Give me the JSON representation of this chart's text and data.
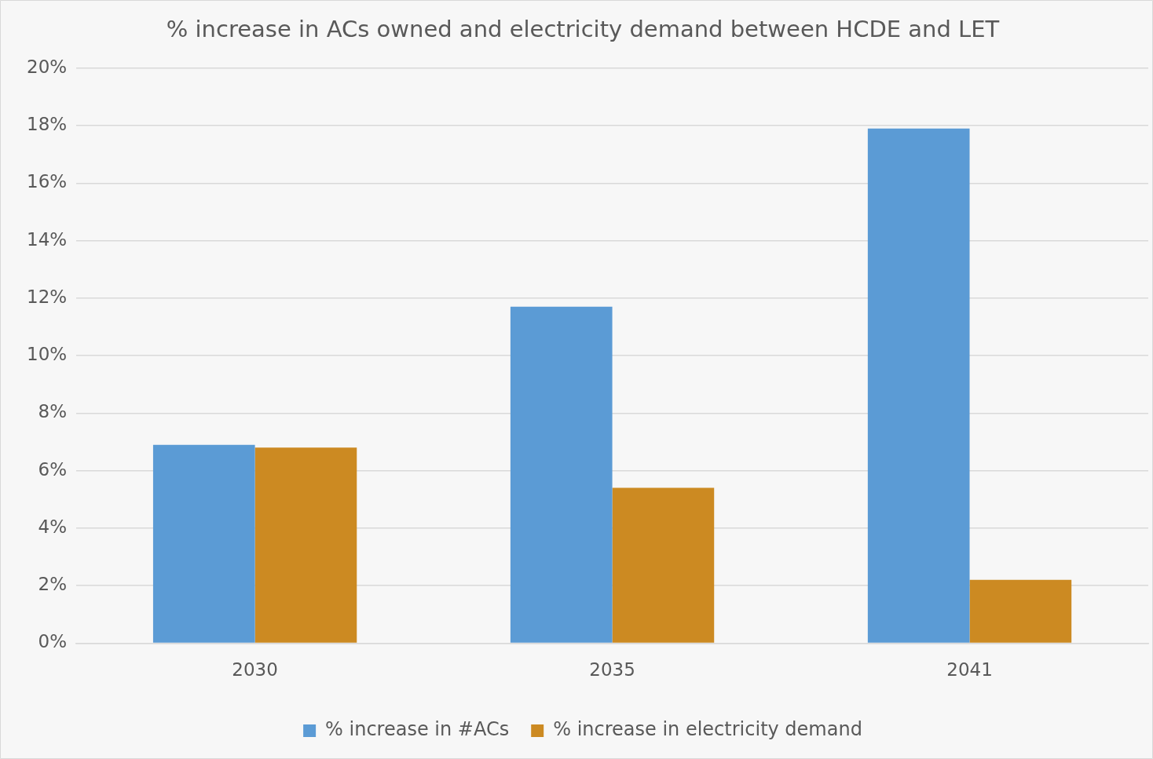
{
  "chart_data": {
    "type": "bar",
    "title": "% increase in ACs owned and electricity demand between HCDE and LET",
    "categories": [
      "2030",
      "2035",
      "2041"
    ],
    "series": [
      {
        "name": "% increase in #ACs",
        "color": "#5b9bd5",
        "values": [
          6.9,
          11.7,
          17.9
        ]
      },
      {
        "name": "% increase in electricity demand",
        "color": "#cc8a22",
        "values": [
          6.8,
          5.4,
          2.2
        ]
      }
    ],
    "ylim": [
      0,
      20
    ],
    "yticks": [
      {
        "value": 0,
        "label": "0%"
      },
      {
        "value": 2,
        "label": "2%"
      },
      {
        "value": 4,
        "label": "4%"
      },
      {
        "value": 6,
        "label": "6%"
      },
      {
        "value": 8,
        "label": "8%"
      },
      {
        "value": 10,
        "label": "10%"
      },
      {
        "value": 12,
        "label": "12%"
      },
      {
        "value": 14,
        "label": "14%"
      },
      {
        "value": 16,
        "label": "16%"
      },
      {
        "value": 18,
        "label": "18%"
      },
      {
        "value": 20,
        "label": "20%"
      }
    ],
    "grid": "y",
    "legend": "bottom"
  }
}
